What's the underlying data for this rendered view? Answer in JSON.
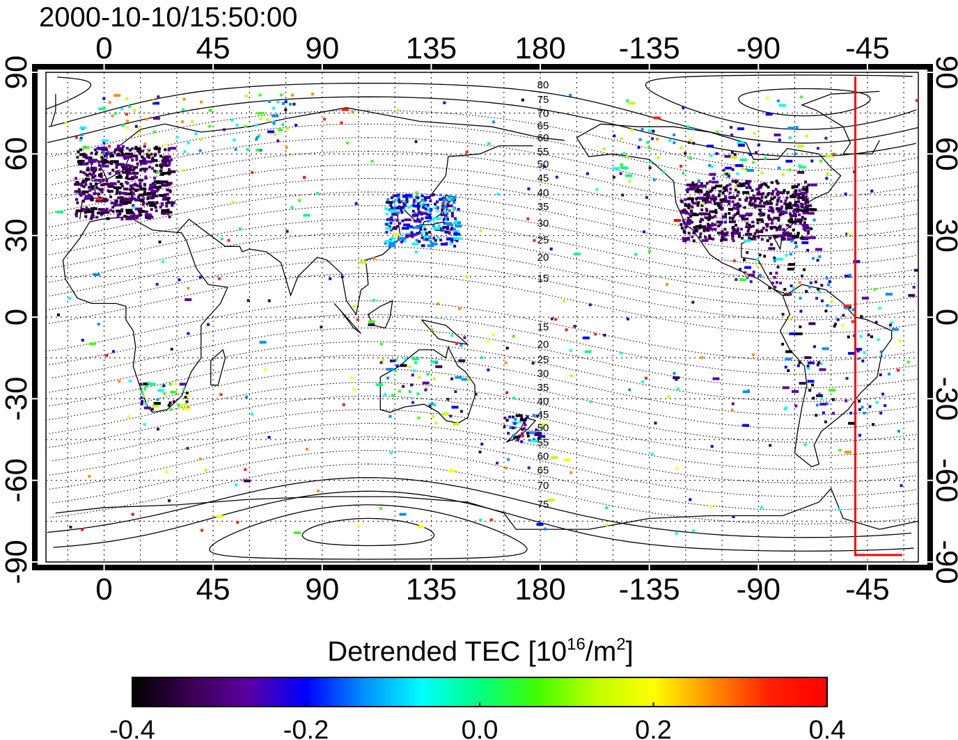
{
  "timestamp": "2000-10-10/15:50:00",
  "x_axis": {
    "top_labels": [
      "0",
      "45",
      "90",
      "135",
      "180",
      "-135",
      "-90",
      "-45"
    ],
    "bottom_labels": [
      "0",
      "45",
      "90",
      "135",
      "180",
      "-135",
      "-90",
      "-45"
    ],
    "longitudes": [
      0,
      45,
      90,
      135,
      180,
      225,
      270,
      315
    ]
  },
  "y_axis": {
    "left_labels": [
      "90",
      "60",
      "30",
      "0",
      "-30",
      "-60",
      "-90"
    ],
    "right_labels": [
      "90",
      "60",
      "30",
      "0",
      "-30",
      "-60",
      "-90"
    ],
    "latitudes": [
      90,
      60,
      30,
      0,
      -30,
      -60,
      -90
    ]
  },
  "map": {
    "lon_range": [
      -24,
      336
    ],
    "lat_range": [
      -90,
      90
    ],
    "grid": "dotted, every 15 degrees"
  },
  "magnetic_latitude_labels": {
    "north": [
      "80",
      "75",
      "70",
      "65",
      "60",
      "55",
      "50",
      "45",
      "40",
      "35",
      "30",
      "25",
      "20",
      "15"
    ],
    "south": [
      "15",
      "20",
      "25",
      "30",
      "35",
      "40",
      "45",
      "50",
      "55",
      "60",
      "65",
      "70",
      "75"
    ]
  },
  "colorbar": {
    "title_prefix": "Detrended TEC  [10",
    "title_exp": "16",
    "title_mid": "/m",
    "title_exp2": "2",
    "title_suffix": "]",
    "tick_labels": [
      "-0.4",
      "-0.2",
      "0.0",
      "0.2",
      "0.4"
    ],
    "range": [
      -0.4,
      0.4
    ],
    "colors": [
      "#000000",
      "#3a0050",
      "#5a00a0",
      "#0000ff",
      "#0090ff",
      "#00ffff",
      "#00ff80",
      "#40ff00",
      "#c0ff00",
      "#ffff00",
      "#ff9000",
      "#ff2000",
      "#ff0000"
    ]
  },
  "meridian_marker": {
    "longitude": -50,
    "color": "#ff0000"
  },
  "colors": {
    "background": "#ffffff",
    "frame": "#000000",
    "marker": "#ff0000"
  }
}
